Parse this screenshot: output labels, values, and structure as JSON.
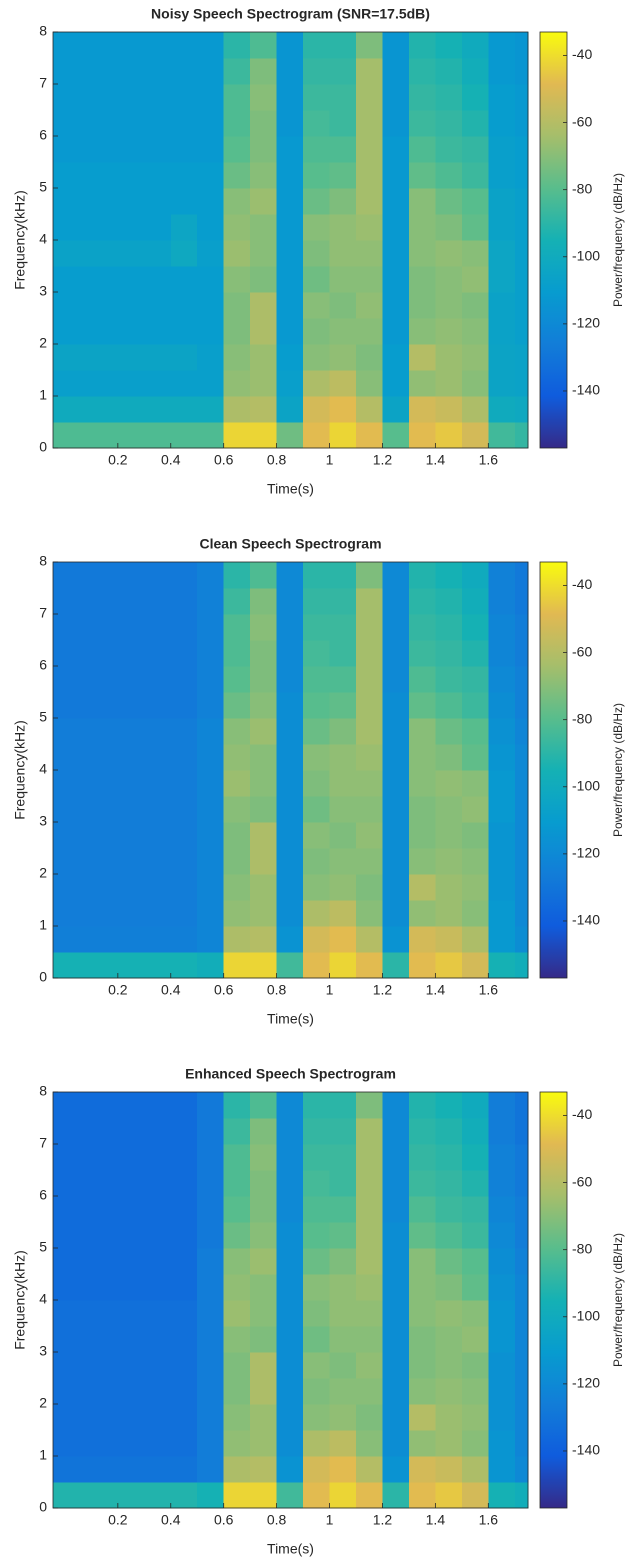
{
  "chart_data": [
    {
      "type": "heatmap",
      "title": "Noisy Speech Spectrogram (SNR=17.5dB)",
      "xlabel": "Time(s)",
      "ylabel": "Frequency(kHz)",
      "colorbar_label": "Power/frequency (dB/Hz)",
      "x_edges": [
        -0.045,
        0.1,
        0.2,
        0.3,
        0.4,
        0.5,
        0.6,
        0.7,
        0.8,
        0.9,
        1.0,
        1.1,
        1.2,
        1.3,
        1.4,
        1.5,
        1.6,
        1.7,
        1.75
      ],
      "y_edges": [
        0,
        0.5,
        1,
        1.5,
        2,
        2.5,
        3,
        3.5,
        4,
        4.5,
        5,
        5.5,
        6,
        6.5,
        7,
        7.5,
        8
      ],
      "z": [
        [
          -82,
          -82,
          -82,
          -82,
          -82,
          -82,
          -42,
          -42,
          -75,
          -48,
          -42,
          -48,
          -80,
          -48,
          -45,
          -52,
          -85,
          -88
        ],
        [
          -100,
          -100,
          -100,
          -100,
          -100,
          -100,
          -62,
          -60,
          -105,
          -52,
          -48,
          -60,
          -105,
          -52,
          -55,
          -62,
          -100,
          -102
        ],
        [
          -108,
          -108,
          -108,
          -108,
          -108,
          -108,
          -68,
          -66,
          -108,
          -62,
          -58,
          -70,
          -110,
          -68,
          -66,
          -70,
          -105,
          -106
        ],
        [
          -105,
          -105,
          -105,
          -105,
          -105,
          -108,
          -70,
          -66,
          -110,
          -70,
          -68,
          -72,
          -110,
          -60,
          -66,
          -68,
          -105,
          -106
        ],
        [
          -110,
          -110,
          -110,
          -110,
          -110,
          -110,
          -72,
          -62,
          -112,
          -72,
          -70,
          -70,
          -112,
          -70,
          -68,
          -70,
          -106,
          -108
        ],
        [
          -110,
          -110,
          -110,
          -110,
          -110,
          -110,
          -72,
          -62,
          -112,
          -70,
          -72,
          -68,
          -112,
          -72,
          -70,
          -72,
          -106,
          -108
        ],
        [
          -110,
          -110,
          -110,
          -110,
          -110,
          -110,
          -70,
          -72,
          -112,
          -75,
          -70,
          -70,
          -112,
          -72,
          -70,
          -68,
          -104,
          -108
        ],
        [
          -106,
          -106,
          -106,
          -106,
          -102,
          -108,
          -66,
          -70,
          -112,
          -72,
          -68,
          -68,
          -112,
          -70,
          -68,
          -70,
          -104,
          -108
        ],
        [
          -110,
          -110,
          -110,
          -110,
          -104,
          -110,
          -68,
          -70,
          -112,
          -70,
          -68,
          -66,
          -112,
          -70,
          -72,
          -78,
          -106,
          -108
        ],
        [
          -110,
          -110,
          -110,
          -110,
          -110,
          -110,
          -70,
          -66,
          -112,
          -76,
          -72,
          -64,
          -112,
          -70,
          -76,
          -80,
          -106,
          -108
        ],
        [
          -110,
          -110,
          -110,
          -110,
          -110,
          -110,
          -76,
          -70,
          -112,
          -80,
          -78,
          -64,
          -112,
          -78,
          -82,
          -86,
          -108,
          -110
        ],
        [
          -112,
          -112,
          -112,
          -112,
          -112,
          -112,
          -80,
          -72,
          -112,
          -82,
          -82,
          -64,
          -112,
          -82,
          -86,
          -88,
          -108,
          -110
        ],
        [
          -112,
          -112,
          -112,
          -112,
          -112,
          -112,
          -82,
          -72,
          -114,
          -84,
          -86,
          -64,
          -114,
          -86,
          -88,
          -92,
          -110,
          -112
        ],
        [
          -112,
          -112,
          -112,
          -112,
          -112,
          -112,
          -82,
          -70,
          -114,
          -86,
          -86,
          -64,
          -114,
          -88,
          -90,
          -95,
          -110,
          -112
        ],
        [
          -112,
          -112,
          -112,
          -112,
          -112,
          -112,
          -86,
          -72,
          -114,
          -88,
          -88,
          -64,
          -114,
          -90,
          -92,
          -98,
          -112,
          -114
        ],
        [
          -112,
          -112,
          -112,
          -112,
          -112,
          -112,
          -90,
          -82,
          -114,
          -90,
          -90,
          -72,
          -114,
          -92,
          -95,
          -100,
          -112,
          -114
        ]
      ],
      "xlim": [
        -0.045,
        1.75
      ],
      "ylim": [
        0,
        8
      ],
      "xticks": [
        0.2,
        0.4,
        0.6,
        0.8,
        1,
        1.2,
        1.4,
        1.6
      ],
      "yticks": [
        0,
        1,
        2,
        3,
        4,
        5,
        6,
        7,
        8
      ],
      "clim": [
        -157,
        -33
      ],
      "cticks": [
        -140,
        -120,
        -100,
        -80,
        -60,
        -40
      ],
      "colormap": "parula"
    },
    {
      "type": "heatmap",
      "title": "Clean Speech Spectrogram",
      "xlabel": "Time(s)",
      "ylabel": "Frequency(kHz)",
      "colorbar_label": "Power/frequency (dB/Hz)",
      "x_edges": [
        -0.045,
        0.1,
        0.2,
        0.3,
        0.4,
        0.5,
        0.6,
        0.7,
        0.8,
        0.9,
        1.0,
        1.1,
        1.2,
        1.3,
        1.4,
        1.5,
        1.6,
        1.7,
        1.75
      ],
      "y_edges": [
        0,
        0.5,
        1,
        1.5,
        2,
        2.5,
        3,
        3.5,
        4,
        4.5,
        5,
        5.5,
        6,
        6.5,
        7,
        7.5,
        8
      ],
      "z": [
        [
          -95,
          -95,
          -95,
          -95,
          -95,
          -98,
          -42,
          -42,
          -85,
          -48,
          -42,
          -48,
          -90,
          -48,
          -45,
          -52,
          -95,
          -98
        ],
        [
          -125,
          -125,
          -125,
          -125,
          -125,
          -122,
          -62,
          -60,
          -115,
          -52,
          -48,
          -60,
          -115,
          -52,
          -55,
          -62,
          -112,
          -118
        ],
        [
          -126,
          -126,
          -126,
          -126,
          -126,
          -122,
          -68,
          -66,
          -118,
          -62,
          -58,
          -70,
          -118,
          -68,
          -66,
          -70,
          -112,
          -120
        ],
        [
          -126,
          -126,
          -126,
          -126,
          -126,
          -122,
          -70,
          -66,
          -118,
          -70,
          -68,
          -72,
          -118,
          -60,
          -66,
          -68,
          -114,
          -120
        ],
        [
          -126,
          -126,
          -126,
          -126,
          -126,
          -122,
          -72,
          -62,
          -118,
          -72,
          -70,
          -70,
          -118,
          -70,
          -68,
          -70,
          -114,
          -120
        ],
        [
          -126,
          -126,
          -126,
          -126,
          -126,
          -122,
          -72,
          -62,
          -118,
          -70,
          -72,
          -68,
          -118,
          -72,
          -70,
          -72,
          -114,
          -120
        ],
        [
          -126,
          -126,
          -126,
          -126,
          -126,
          -122,
          -70,
          -72,
          -118,
          -75,
          -70,
          -70,
          -118,
          -72,
          -70,
          -68,
          -112,
          -120
        ],
        [
          -126,
          -126,
          -126,
          -126,
          -126,
          -122,
          -66,
          -70,
          -118,
          -72,
          -68,
          -68,
          -118,
          -70,
          -68,
          -70,
          -112,
          -120
        ],
        [
          -126,
          -126,
          -126,
          -126,
          -126,
          -122,
          -68,
          -70,
          -118,
          -70,
          -68,
          -66,
          -118,
          -70,
          -72,
          -78,
          -114,
          -120
        ],
        [
          -126,
          -126,
          -126,
          -126,
          -126,
          -122,
          -70,
          -66,
          -118,
          -76,
          -72,
          -64,
          -118,
          -70,
          -76,
          -80,
          -116,
          -122
        ],
        [
          -128,
          -128,
          -128,
          -128,
          -128,
          -124,
          -76,
          -70,
          -118,
          -80,
          -78,
          -64,
          -118,
          -78,
          -82,
          -86,
          -118,
          -124
        ],
        [
          -128,
          -128,
          -128,
          -128,
          -128,
          -124,
          -80,
          -72,
          -120,
          -82,
          -82,
          -64,
          -120,
          -82,
          -86,
          -88,
          -120,
          -124
        ],
        [
          -128,
          -128,
          -128,
          -128,
          -128,
          -124,
          -82,
          -72,
          -120,
          -84,
          -86,
          -64,
          -120,
          -86,
          -88,
          -92,
          -122,
          -126
        ],
        [
          -128,
          -128,
          -128,
          -128,
          -128,
          -124,
          -82,
          -70,
          -120,
          -86,
          -86,
          -64,
          -120,
          -88,
          -90,
          -95,
          -122,
          -126
        ],
        [
          -128,
          -128,
          -128,
          -128,
          -128,
          -124,
          -86,
          -72,
          -120,
          -88,
          -88,
          -64,
          -120,
          -90,
          -92,
          -98,
          -124,
          -128
        ],
        [
          -128,
          -128,
          -128,
          -128,
          -128,
          -124,
          -90,
          -82,
          -120,
          -90,
          -90,
          -72,
          -120,
          -92,
          -95,
          -100,
          -124,
          -128
        ]
      ],
      "xlim": [
        -0.045,
        1.75
      ],
      "ylim": [
        0,
        8
      ],
      "xticks": [
        0.2,
        0.4,
        0.6,
        0.8,
        1,
        1.2,
        1.4,
        1.6
      ],
      "yticks": [
        0,
        1,
        2,
        3,
        4,
        5,
        6,
        7,
        8
      ],
      "clim": [
        -157,
        -33
      ],
      "cticks": [
        -140,
        -120,
        -100,
        -80,
        -60,
        -40
      ],
      "colormap": "parula"
    },
    {
      "type": "heatmap",
      "title": "Enhanced Speech Spectrogram",
      "xlabel": "Time(s)",
      "ylabel": "Frequency(kHz)",
      "colorbar_label": "Power/frequency (dB/Hz)",
      "x_edges": [
        -0.045,
        0.1,
        0.2,
        0.3,
        0.4,
        0.5,
        0.6,
        0.7,
        0.8,
        0.9,
        1.0,
        1.1,
        1.2,
        1.3,
        1.4,
        1.5,
        1.6,
        1.7,
        1.75
      ],
      "y_edges": [
        0,
        0.5,
        1,
        1.5,
        2,
        2.5,
        3,
        3.5,
        4,
        4.5,
        5,
        5.5,
        6,
        6.5,
        7,
        7.5,
        8
      ],
      "z": [
        [
          -92,
          -92,
          -92,
          -92,
          -92,
          -95,
          -42,
          -42,
          -85,
          -48,
          -42,
          -48,
          -90,
          -48,
          -45,
          -52,
          -95,
          -98
        ],
        [
          -130,
          -130,
          -130,
          -130,
          -130,
          -126,
          -62,
          -60,
          -115,
          -52,
          -48,
          -60,
          -115,
          -52,
          -55,
          -62,
          -114,
          -120
        ],
        [
          -132,
          -132,
          -132,
          -132,
          -132,
          -126,
          -68,
          -66,
          -118,
          -62,
          -58,
          -70,
          -118,
          -68,
          -66,
          -70,
          -114,
          -122
        ],
        [
          -132,
          -132,
          -132,
          -132,
          -132,
          -126,
          -70,
          -66,
          -118,
          -70,
          -68,
          -72,
          -118,
          -60,
          -66,
          -68,
          -116,
          -122
        ],
        [
          -132,
          -132,
          -132,
          -132,
          -132,
          -126,
          -72,
          -62,
          -118,
          -72,
          -70,
          -70,
          -118,
          -70,
          -68,
          -70,
          -116,
          -122
        ],
        [
          -132,
          -132,
          -132,
          -132,
          -132,
          -126,
          -72,
          -62,
          -118,
          -70,
          -72,
          -68,
          -118,
          -72,
          -70,
          -72,
          -116,
          -122
        ],
        [
          -132,
          -132,
          -132,
          -132,
          -132,
          -126,
          -70,
          -72,
          -118,
          -75,
          -70,
          -70,
          -118,
          -72,
          -70,
          -68,
          -114,
          -122
        ],
        [
          -132,
          -132,
          -132,
          -132,
          -132,
          -126,
          -66,
          -70,
          -118,
          -72,
          -68,
          -68,
          -118,
          -70,
          -68,
          -70,
          -114,
          -122
        ],
        [
          -134,
          -134,
          -134,
          -134,
          -134,
          -126,
          -68,
          -70,
          -118,
          -70,
          -68,
          -66,
          -118,
          -70,
          -72,
          -78,
          -116,
          -122
        ],
        [
          -134,
          -134,
          -134,
          -134,
          -134,
          -126,
          -70,
          -66,
          -118,
          -76,
          -72,
          -64,
          -118,
          -70,
          -76,
          -80,
          -118,
          -124
        ],
        [
          -134,
          -134,
          -134,
          -134,
          -134,
          -128,
          -76,
          -70,
          -118,
          -80,
          -78,
          -64,
          -118,
          -78,
          -82,
          -86,
          -120,
          -126
        ],
        [
          -134,
          -134,
          -134,
          -134,
          -134,
          -128,
          -80,
          -72,
          -120,
          -82,
          -82,
          -64,
          -120,
          -82,
          -86,
          -88,
          -122,
          -126
        ],
        [
          -134,
          -134,
          -134,
          -134,
          -134,
          -128,
          -82,
          -72,
          -120,
          -84,
          -86,
          -64,
          -120,
          -86,
          -88,
          -92,
          -124,
          -128
        ],
        [
          -134,
          -134,
          -134,
          -134,
          -134,
          -128,
          -82,
          -70,
          -120,
          -86,
          -86,
          -64,
          -120,
          -88,
          -90,
          -95,
          -124,
          -128
        ],
        [
          -134,
          -134,
          -134,
          -134,
          -134,
          -128,
          -86,
          -72,
          -120,
          -88,
          -88,
          -64,
          -120,
          -90,
          -92,
          -98,
          -126,
          -130
        ],
        [
          -134,
          -134,
          -134,
          -134,
          -134,
          -128,
          -90,
          -82,
          -120,
          -90,
          -90,
          -72,
          -120,
          -92,
          -95,
          -100,
          -126,
          -130
        ]
      ],
      "xlim": [
        -0.045,
        1.75
      ],
      "ylim": [
        0,
        8
      ],
      "xticks": [
        0.2,
        0.4,
        0.6,
        0.8,
        1,
        1.2,
        1.4,
        1.6
      ],
      "yticks": [
        0,
        1,
        2,
        3,
        4,
        5,
        6,
        7,
        8
      ],
      "clim": [
        -157,
        -33
      ],
      "cticks": [
        -140,
        -120,
        -100,
        -80,
        -60,
        -40
      ],
      "colormap": "parula"
    }
  ]
}
